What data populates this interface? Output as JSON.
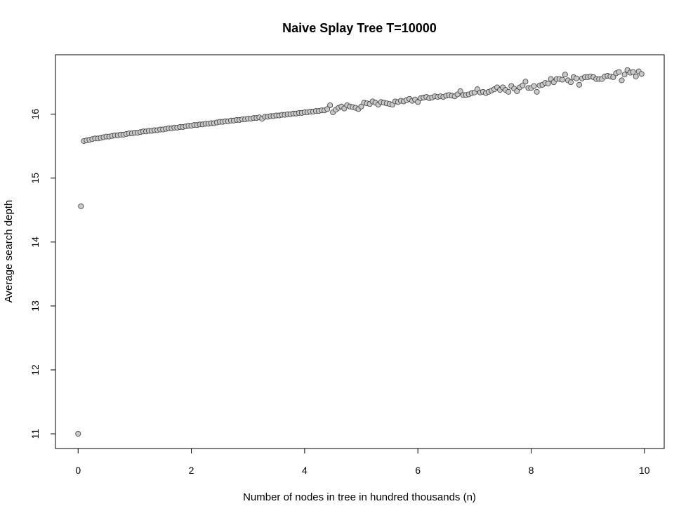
{
  "chart_data": {
    "type": "scatter",
    "title": "Naive Splay Tree T=10000",
    "xlabel": "Number of nodes in tree in hundred thousands (n)",
    "ylabel": "Average search depth",
    "xlim": [
      -0.4,
      10.35
    ],
    "ylim": [
      10.77,
      16.93
    ],
    "xticks": [
      "0",
      "2",
      "4",
      "6",
      "8",
      "10"
    ],
    "yticks": [
      "11",
      "12",
      "13",
      "14",
      "15",
      "16"
    ],
    "grid": false,
    "series": [
      {
        "x": [
          0,
          0.05,
          0.1,
          0.15,
          0.2,
          0.25,
          0.3,
          0.35,
          0.4,
          0.45,
          0.5,
          0.55,
          0.6,
          0.65,
          0.7,
          0.75,
          0.8,
          0.85,
          0.9,
          0.95,
          1.0,
          1.05,
          1.1,
          1.15,
          1.2,
          1.25,
          1.3,
          1.35,
          1.4,
          1.45,
          1.5,
          1.55,
          1.6,
          1.65,
          1.7,
          1.75,
          1.8,
          1.85,
          1.9,
          1.95,
          2.0,
          2.05,
          2.1,
          2.15,
          2.2,
          2.25,
          2.3,
          2.35,
          2.4,
          2.45,
          2.5,
          2.55,
          2.6,
          2.65,
          2.7,
          2.75,
          2.8,
          2.85,
          2.9,
          2.95,
          3.0,
          3.05,
          3.1,
          3.15,
          3.2,
          3.25,
          3.3,
          3.35,
          3.4,
          3.45,
          3.5,
          3.55,
          3.6,
          3.65,
          3.7,
          3.75,
          3.8,
          3.85,
          3.9,
          3.95,
          4.0,
          4.05,
          4.1,
          4.15,
          4.2,
          4.25,
          4.3,
          4.35,
          4.4,
          4.45,
          4.5,
          4.55,
          4.6,
          4.65,
          4.7,
          4.75,
          4.8,
          4.85,
          4.9,
          4.95,
          5.0,
          5.05,
          5.1,
          5.15,
          5.2,
          5.25,
          5.3,
          5.35,
          5.4,
          5.45,
          5.5,
          5.55,
          5.6,
          5.65,
          5.7,
          5.75,
          5.8,
          5.85,
          5.9,
          5.95,
          6.0,
          6.05,
          6.1,
          6.15,
          6.2,
          6.25,
          6.3,
          6.35,
          6.4,
          6.45,
          6.5,
          6.55,
          6.6,
          6.65,
          6.7,
          6.75,
          6.8,
          6.85,
          6.9,
          6.95,
          7.0,
          7.05,
          7.1,
          7.15,
          7.2,
          7.25,
          7.3,
          7.35,
          7.4,
          7.45,
          7.5,
          7.55,
          7.6,
          7.65,
          7.7,
          7.75,
          7.8,
          7.85,
          7.9,
          7.95,
          8.0,
          8.05,
          8.1,
          8.15,
          8.2,
          8.25,
          8.3,
          8.35,
          8.4,
          8.45,
          8.5,
          8.55,
          8.6,
          8.65,
          8.7,
          8.75,
          8.8,
          8.85,
          8.9,
          8.95,
          9.0,
          9.05,
          9.1,
          9.15,
          9.2,
          9.25,
          9.3,
          9.35,
          9.4,
          9.45,
          9.5,
          9.55,
          9.6,
          9.65,
          9.7,
          9.75,
          9.8,
          9.85,
          9.9,
          9.95
        ],
        "y": [
          11.0,
          14.56,
          15.58,
          15.59,
          15.6,
          15.61,
          15.62,
          15.62,
          15.63,
          15.64,
          15.65,
          15.65,
          15.66,
          15.67,
          15.67,
          15.68,
          15.68,
          15.69,
          15.7,
          15.7,
          15.71,
          15.71,
          15.72,
          15.73,
          15.73,
          15.74,
          15.74,
          15.75,
          15.75,
          15.76,
          15.76,
          15.77,
          15.78,
          15.78,
          15.79,
          15.79,
          15.8,
          15.8,
          15.81,
          15.82,
          15.82,
          15.83,
          15.83,
          15.84,
          15.84,
          15.85,
          15.85,
          15.86,
          15.86,
          15.87,
          15.88,
          15.88,
          15.89,
          15.89,
          15.9,
          15.9,
          15.91,
          15.91,
          15.92,
          15.92,
          15.93,
          15.93,
          15.94,
          15.94,
          15.95,
          15.93,
          15.96,
          15.96,
          15.97,
          15.97,
          15.98,
          15.98,
          15.99,
          15.99,
          16.0,
          16.0,
          16.01,
          16.01,
          16.02,
          16.02,
          16.03,
          16.03,
          16.04,
          16.04,
          16.05,
          16.05,
          16.06,
          16.06,
          16.08,
          16.14,
          16.03,
          16.07,
          16.1,
          16.12,
          16.09,
          16.14,
          16.12,
          16.11,
          16.1,
          16.08,
          16.12,
          16.18,
          16.17,
          16.16,
          16.2,
          16.18,
          16.15,
          16.19,
          16.18,
          16.17,
          16.16,
          16.15,
          16.2,
          16.19,
          16.21,
          16.2,
          16.22,
          16.24,
          16.21,
          16.23,
          16.19,
          16.25,
          16.26,
          16.27,
          16.25,
          16.26,
          16.28,
          16.27,
          16.28,
          16.27,
          16.29,
          16.3,
          16.29,
          16.28,
          16.31,
          16.36,
          16.3,
          16.3,
          16.31,
          16.33,
          16.34,
          16.39,
          16.34,
          16.35,
          16.33,
          16.35,
          16.37,
          16.39,
          16.42,
          16.38,
          16.42,
          16.38,
          16.35,
          16.44,
          16.4,
          16.36,
          16.42,
          16.45,
          16.51,
          16.41,
          16.41,
          16.44,
          16.35,
          16.45,
          16.46,
          16.49,
          16.48,
          16.55,
          16.5,
          16.55,
          16.55,
          16.54,
          16.62,
          16.53,
          16.5,
          16.58,
          16.56,
          16.46,
          16.56,
          16.58,
          16.58,
          16.59,
          16.58,
          16.55,
          16.55,
          16.55,
          16.59,
          16.6,
          16.59,
          16.58,
          16.64,
          16.66,
          16.53,
          16.62,
          16.69,
          16.65,
          16.66,
          16.59,
          16.67,
          16.63
        ]
      }
    ]
  }
}
